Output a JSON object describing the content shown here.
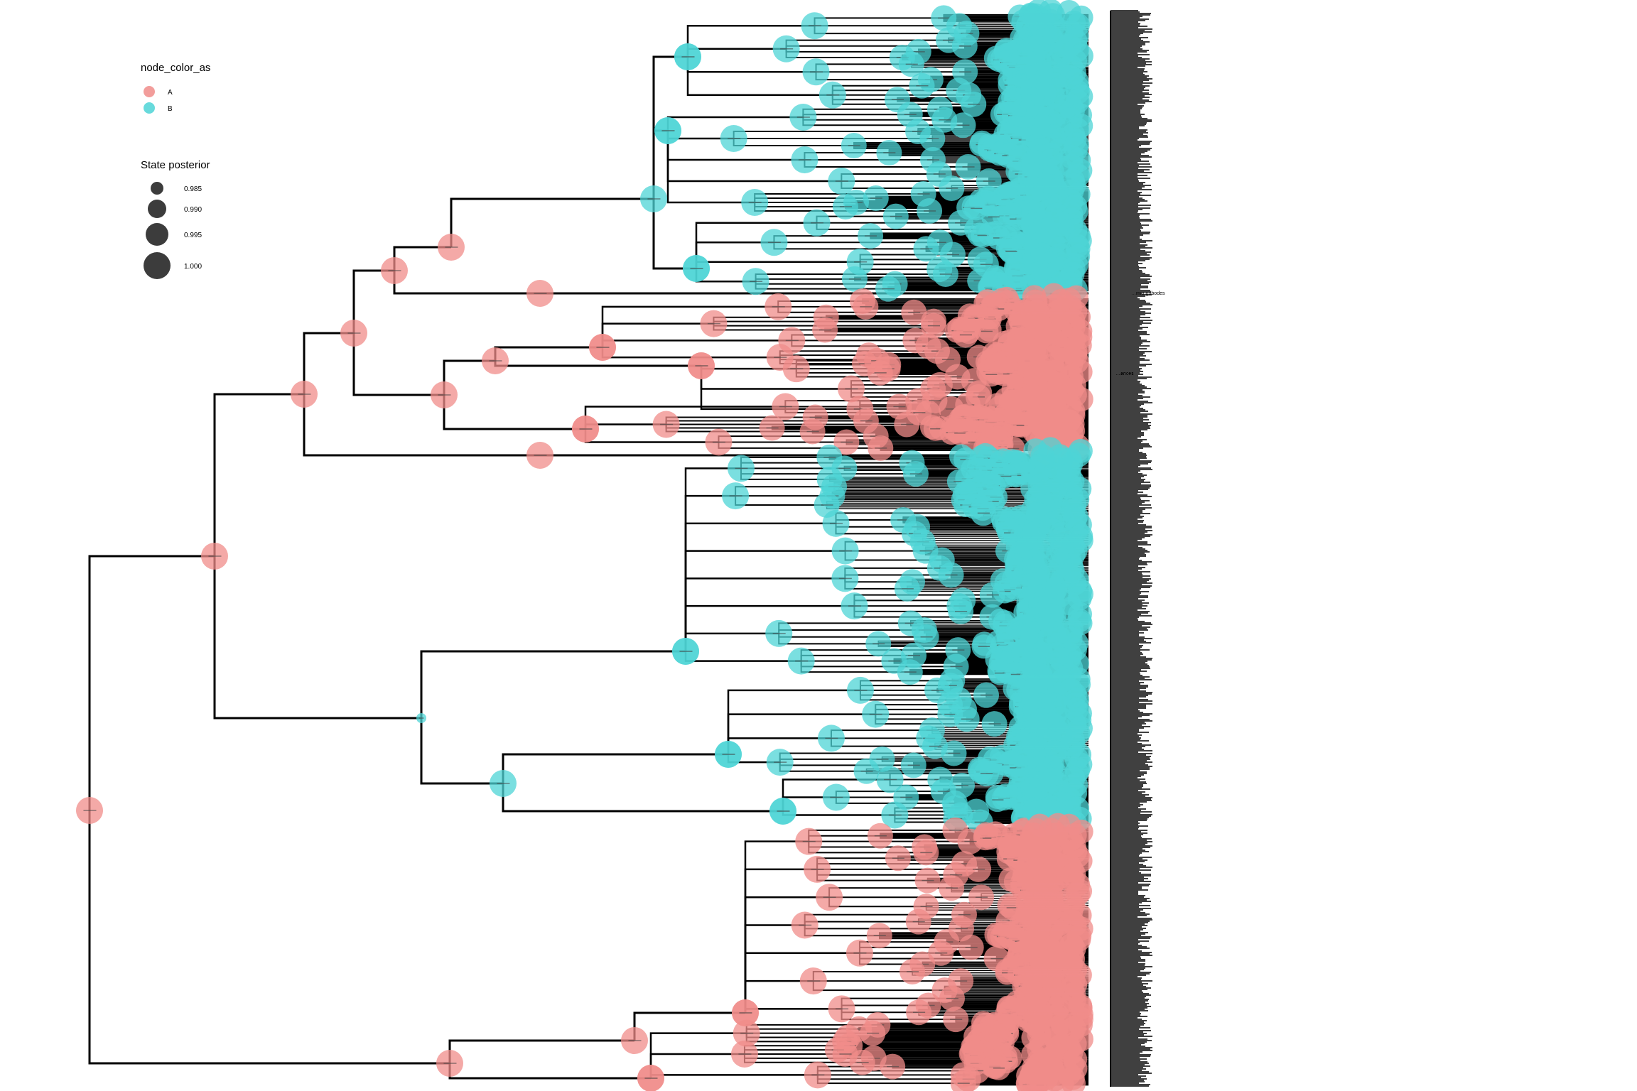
{
  "legend_color": {
    "title": "node_color_as",
    "items": [
      {
        "label": "A",
        "color": "#F08C8A"
      },
      {
        "label": "B",
        "color": "#4DD4D6"
      }
    ]
  },
  "legend_size": {
    "title": "State posterior",
    "items": [
      {
        "label": "0.985",
        "value": 0.985
      },
      {
        "label": "0.990",
        "value": 0.99
      },
      {
        "label": "0.995",
        "value": 0.995
      },
      {
        "label": "1.000",
        "value": 1.0
      }
    ]
  },
  "colors": {
    "A": "#F08C8A",
    "B": "#4DD4D6",
    "branch": "#000000",
    "legend_size_marker": "#1a1a1a"
  },
  "tip_labels": [
    "…mangobodes",
    "…arices"
  ]
}
